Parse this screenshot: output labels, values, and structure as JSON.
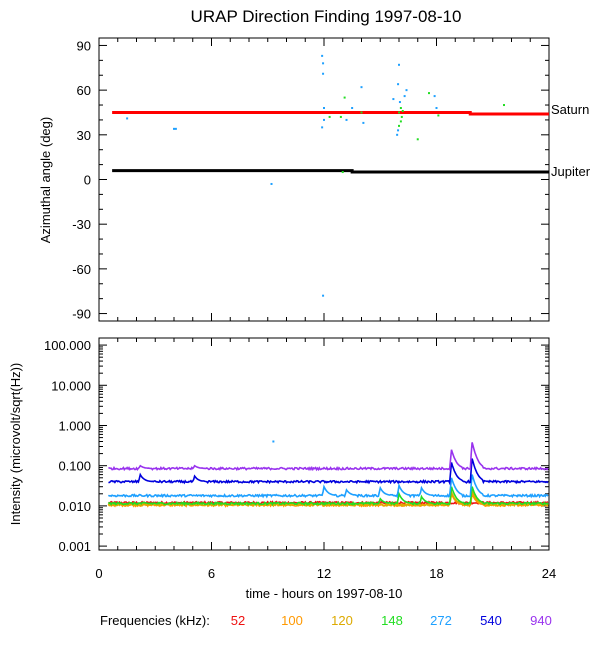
{
  "chart_data": [
    {
      "type": "scatter",
      "title": "URAP Direction Finding  1997-08-10",
      "ylabel": "Azimuthal angle (deg)",
      "xlim": [
        0,
        24
      ],
      "ylim": [
        -95,
        95
      ],
      "yticks": [
        90,
        60,
        30,
        0,
        -30,
        -60,
        -90
      ],
      "lines": [
        {
          "name": "Saturn",
          "color": "#ff0000",
          "points": [
            [
              0.7,
              45
            ],
            [
              19.8,
              45
            ],
            [
              19.8,
              44
            ],
            [
              24,
              44
            ]
          ]
        },
        {
          "name": "Jupiter",
          "color": "#000000",
          "points": [
            [
              0.7,
              6
            ],
            [
              13.5,
              6
            ],
            [
              13.5,
              5
            ],
            [
              24,
              5
            ]
          ]
        }
      ],
      "points": [
        {
          "x": 11.9,
          "y": 83,
          "color": "#1ea0ff"
        },
        {
          "x": 11.95,
          "y": 78,
          "color": "#1ea0ff"
        },
        {
          "x": 11.95,
          "y": 71,
          "color": "#1ea0ff"
        },
        {
          "x": 12.0,
          "y": 48,
          "color": "#1ea0ff"
        },
        {
          "x": 12.0,
          "y": 40,
          "color": "#1ea0ff"
        },
        {
          "x": 11.9,
          "y": 35,
          "color": "#1ea0ff"
        },
        {
          "x": 11.95,
          "y": -78,
          "color": "#1ea0ff"
        },
        {
          "x": 1.5,
          "y": 41,
          "color": "#1ea0ff"
        },
        {
          "x": 4.0,
          "y": 34,
          "color": "#1ea0ff"
        },
        {
          "x": 4.1,
          "y": 34,
          "color": "#1ea0ff"
        },
        {
          "x": 9.2,
          "y": -3,
          "color": "#1ea0ff"
        },
        {
          "x": 12.3,
          "y": 42,
          "color": "#22dd22"
        },
        {
          "x": 12.9,
          "y": 42,
          "color": "#22dd22"
        },
        {
          "x": 13.1,
          "y": 55,
          "color": "#22dd22"
        },
        {
          "x": 13.2,
          "y": 40,
          "color": "#1ea0ff"
        },
        {
          "x": 13.5,
          "y": 48,
          "color": "#1ea0ff"
        },
        {
          "x": 13.0,
          "y": 5,
          "color": "#22dd22"
        },
        {
          "x": 14.0,
          "y": 62,
          "color": "#1ea0ff"
        },
        {
          "x": 14.1,
          "y": 38,
          "color": "#1ea0ff"
        },
        {
          "x": 14.0,
          "y": 45,
          "color": "#22dd22"
        },
        {
          "x": 15.7,
          "y": 54,
          "color": "#1ea0ff"
        },
        {
          "x": 16.0,
          "y": 77,
          "color": "#1ea0ff"
        },
        {
          "x": 15.95,
          "y": 64,
          "color": "#1ea0ff"
        },
        {
          "x": 16.05,
          "y": 52,
          "color": "#1ea0ff"
        },
        {
          "x": 16.1,
          "y": 48,
          "color": "#22dd22"
        },
        {
          "x": 16.0,
          "y": 45,
          "color": "#22dd22"
        },
        {
          "x": 16.15,
          "y": 42,
          "color": "#22dd22"
        },
        {
          "x": 16.1,
          "y": 39,
          "color": "#22dd22"
        },
        {
          "x": 16.0,
          "y": 36,
          "color": "#22dd22"
        },
        {
          "x": 15.95,
          "y": 33,
          "color": "#1ea0ff"
        },
        {
          "x": 15.9,
          "y": 30,
          "color": "#1ea0ff"
        },
        {
          "x": 16.2,
          "y": 46,
          "color": "#22dd22"
        },
        {
          "x": 16.4,
          "y": 60,
          "color": "#1ea0ff"
        },
        {
          "x": 16.3,
          "y": 56,
          "color": "#1ea0ff"
        },
        {
          "x": 17.0,
          "y": 27,
          "color": "#22dd22"
        },
        {
          "x": 17.6,
          "y": 58,
          "color": "#22dd22"
        },
        {
          "x": 17.9,
          "y": 56,
          "color": "#1ea0ff"
        },
        {
          "x": 18.0,
          "y": 48,
          "color": "#1ea0ff"
        },
        {
          "x": 18.1,
          "y": 43,
          "color": "#22dd22"
        },
        {
          "x": 21.6,
          "y": 50,
          "color": "#22dd22"
        }
      ],
      "annotations": [
        "Saturn",
        "Jupiter"
      ]
    },
    {
      "type": "line",
      "ylabel": "Intensity (microvolt/sqrt(Hz))",
      "xlabel": "time - hours on 1997-08-10",
      "xlim": [
        0,
        24
      ],
      "xticks": [
        0,
        6,
        12,
        18,
        24
      ],
      "ylim": [
        0.0008,
        150
      ],
      "yscale": "log",
      "ytick_labels": [
        "100.000",
        "10.000",
        "1.000",
        "0.100",
        "0.010",
        "0.001"
      ],
      "ytick_values": [
        100,
        10,
        1,
        0.1,
        0.01,
        0.001
      ],
      "series": [
        {
          "name": "52",
          "color": "#ee1111",
          "baseline": 0.012,
          "peaks": []
        },
        {
          "name": "100",
          "color": "#ff9900",
          "baseline": 0.0105,
          "peaks": [
            [
              18.8,
              0.02
            ],
            [
              19.9,
              0.02
            ]
          ]
        },
        {
          "name": "120",
          "color": "#ddaa00",
          "baseline": 0.0108,
          "peaks": [
            [
              18.8,
              0.022
            ],
            [
              19.9,
              0.024
            ]
          ]
        },
        {
          "name": "148",
          "color": "#22dd22",
          "baseline": 0.0115,
          "peaks": [
            [
              15.0,
              0.015
            ],
            [
              16.0,
              0.02
            ],
            [
              17.2,
              0.017
            ],
            [
              18.8,
              0.03
            ],
            [
              19.9,
              0.03
            ]
          ]
        },
        {
          "name": "272",
          "color": "#1ea0ff",
          "baseline": 0.018,
          "peaks": [
            [
              12.0,
              0.03
            ],
            [
              13.2,
              0.025
            ],
            [
              15.0,
              0.028
            ],
            [
              16.0,
              0.032
            ],
            [
              17.2,
              0.028
            ],
            [
              18.8,
              0.05
            ],
            [
              19.9,
              0.06
            ]
          ]
        },
        {
          "name": "540",
          "color": "#0000dd",
          "baseline": 0.04,
          "peaks": [
            [
              2.2,
              0.06
            ],
            [
              5.1,
              0.055
            ],
            [
              18.8,
              0.12
            ],
            [
              19.9,
              0.15
            ]
          ]
        },
        {
          "name": "940",
          "color": "#9933ee",
          "baseline": 0.085,
          "peaks": [
            [
              2.2,
              0.1
            ],
            [
              5.1,
              0.1
            ],
            [
              18.8,
              0.25
            ],
            [
              19.9,
              0.38
            ]
          ]
        }
      ],
      "outliers": [
        {
          "x": 9.3,
          "y": 0.4,
          "color": "#1ea0ff"
        }
      ]
    }
  ],
  "legend": {
    "label": "Frequencies (kHz):",
    "entries": [
      {
        "text": "52",
        "color": "#ee1111"
      },
      {
        "text": "100",
        "color": "#ff9900"
      },
      {
        "text": "120",
        "color": "#ddaa00"
      },
      {
        "text": "148",
        "color": "#22dd22"
      },
      {
        "text": "272",
        "color": "#1ea0ff"
      },
      {
        "text": "540",
        "color": "#0000dd"
      },
      {
        "text": "940",
        "color": "#9933ee"
      }
    ]
  }
}
